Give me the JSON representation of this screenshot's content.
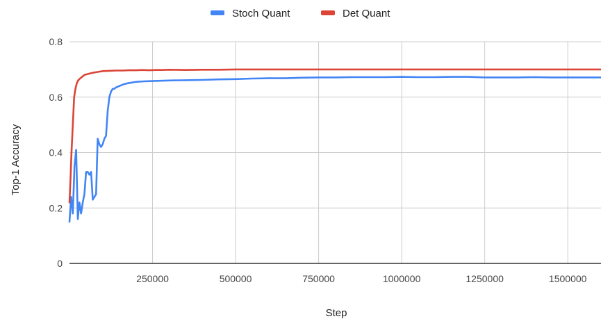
{
  "chart_data": {
    "type": "line",
    "title": "",
    "xlabel": "Step",
    "ylabel": "Top-1 Accuracy",
    "xlim": [
      0,
      1600000
    ],
    "ylim": [
      0,
      0.8
    ],
    "x_ticks": [
      250000,
      500000,
      750000,
      1000000,
      1250000,
      1500000
    ],
    "x_tick_labels": [
      "250000",
      "500000",
      "750000",
      "1000000",
      "1250000",
      "1500000"
    ],
    "y_ticks": [
      0,
      0.2,
      0.4,
      0.6,
      0.8
    ],
    "y_tick_labels": [
      "0",
      "0.2",
      "0.4",
      "0.6",
      "0.8"
    ],
    "grid": true,
    "legend_position": "top",
    "series": [
      {
        "name": "Stoch Quant",
        "color": "#4285f4",
        "x": [
          0,
          5000,
          10000,
          15000,
          20000,
          25000,
          30000,
          35000,
          40000,
          45000,
          50000,
          55000,
          60000,
          65000,
          70000,
          75000,
          80000,
          85000,
          90000,
          95000,
          100000,
          105000,
          110000,
          115000,
          120000,
          125000,
          130000,
          135000,
          140000,
          150000,
          160000,
          175000,
          200000,
          225000,
          250000,
          300000,
          350000,
          400000,
          450000,
          500000,
          550000,
          600000,
          650000,
          700000,
          750000,
          800000,
          850000,
          900000,
          950000,
          1000000,
          1050000,
          1100000,
          1150000,
          1200000,
          1250000,
          1300000,
          1350000,
          1400000,
          1450000,
          1500000,
          1550000,
          1600000
        ],
        "y": [
          0.15,
          0.24,
          0.18,
          0.35,
          0.41,
          0.16,
          0.22,
          0.18,
          0.22,
          0.25,
          0.33,
          0.33,
          0.32,
          0.33,
          0.23,
          0.24,
          0.25,
          0.45,
          0.43,
          0.42,
          0.43,
          0.45,
          0.46,
          0.55,
          0.6,
          0.62,
          0.63,
          0.63,
          0.635,
          0.64,
          0.645,
          0.65,
          0.655,
          0.657,
          0.658,
          0.66,
          0.661,
          0.662,
          0.664,
          0.665,
          0.667,
          0.668,
          0.668,
          0.67,
          0.671,
          0.671,
          0.672,
          0.672,
          0.672,
          0.673,
          0.672,
          0.672,
          0.673,
          0.673,
          0.671,
          0.671,
          0.671,
          0.672,
          0.671,
          0.671,
          0.671,
          0.671
        ]
      },
      {
        "name": "Det Quant",
        "color": "#db4437",
        "x": [
          0,
          3000,
          6000,
          10000,
          14000,
          18000,
          22000,
          26000,
          30000,
          35000,
          40000,
          45000,
          50000,
          60000,
          70000,
          80000,
          90000,
          100000,
          120000,
          140000,
          160000,
          180000,
          200000,
          220000,
          240000,
          260000,
          280000,
          300000,
          350000,
          400000,
          450000,
          500000,
          600000,
          700000,
          800000,
          900000,
          1000000,
          1100000,
          1200000,
          1300000,
          1400000,
          1500000,
          1600000
        ],
        "y": [
          0.22,
          0.3,
          0.4,
          0.5,
          0.6,
          0.63,
          0.65,
          0.66,
          0.665,
          0.67,
          0.675,
          0.68,
          0.682,
          0.685,
          0.688,
          0.69,
          0.692,
          0.694,
          0.695,
          0.696,
          0.696,
          0.697,
          0.697,
          0.698,
          0.697,
          0.698,
          0.698,
          0.699,
          0.698,
          0.699,
          0.699,
          0.7,
          0.7,
          0.7,
          0.7,
          0.7,
          0.7,
          0.7,
          0.7,
          0.7,
          0.7,
          0.7,
          0.7
        ]
      }
    ]
  }
}
